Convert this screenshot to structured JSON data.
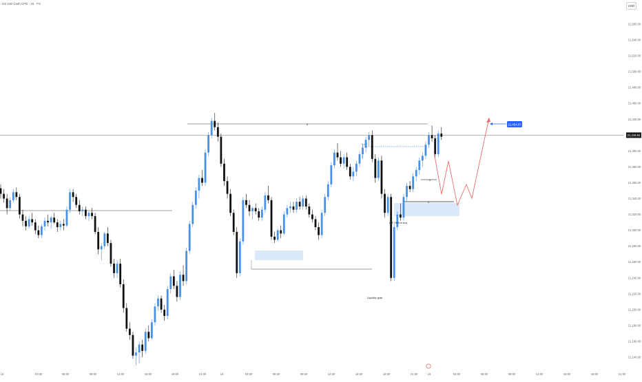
{
  "header": {
    "title": "US 100 Cash CFD · 15 · FX",
    "currency": "USD"
  },
  "colors": {
    "bull": "#4a90e2",
    "bear": "#111111",
    "zone": "#dbe9fb",
    "projection": "#ef6b6b",
    "target": "#2962ff",
    "levels": "#8a8a8a"
  },
  "chart_data": {
    "type": "candlestick",
    "y_axis": {
      "min": 21140,
      "max": 21560,
      "ticks": [
        "21,560.00",
        "21,540.00",
        "21,520.00",
        "21,500.00",
        "21,480.00",
        "21,460.00",
        "21,440.00",
        "21,420.00",
        "21,400.00",
        "21,380.00",
        "21,360.00",
        "21,340.00",
        "21,320.00",
        "21,300.00",
        "21,280.00",
        "21,260.00",
        "21,240.00",
        "21,220.00",
        "21,200.00",
        "21,180.00",
        "21,160.00",
        "21,140.00"
      ],
      "tick_values": [
        21560,
        21540,
        21520,
        21500,
        21480,
        21460,
        21440,
        21420,
        21400,
        21380,
        21360,
        21340,
        21320,
        21300,
        21280,
        21260,
        21240,
        21220,
        21200,
        21180,
        21160,
        21140
      ]
    },
    "x_axis": {
      "ticks": [
        "15",
        "03:00",
        "06:00",
        "09:00",
        "12:00",
        "15:00",
        "18:00",
        "21:00",
        "16",
        "03:00",
        "06:00",
        "09:00",
        "12:00",
        "15:00",
        "18:00",
        "21:00",
        "19",
        "03:00",
        "06:00",
        "09:00",
        "12:00",
        "15:00",
        "18:00",
        "21:00"
      ],
      "bar_positions": [
        0,
        12,
        24,
        36,
        48,
        60,
        72,
        84,
        96,
        108,
        120,
        132,
        144,
        156,
        168,
        180,
        192,
        204,
        216,
        228,
        240,
        252,
        264,
        276
      ]
    },
    "current_price": "21,419.94",
    "current_price_value": 21419.94,
    "target_price": "21,454.07",
    "target_price_value": 21454.07,
    "labels": {
      "liquidity": "Liquidity grab",
      "ltf_shift": "LTF Shift to buy",
      "level_tag": "Bull ?"
    },
    "candles": [
      [
        21353,
        21358,
        21340,
        21346
      ],
      [
        21346,
        21352,
        21335,
        21340
      ],
      [
        21340,
        21346,
        21320,
        21328
      ],
      [
        21328,
        21342,
        21325,
        21338
      ],
      [
        21338,
        21352,
        21335,
        21348
      ],
      [
        21348,
        21354,
        21338,
        21342
      ],
      [
        21342,
        21346,
        21315,
        21320
      ],
      [
        21320,
        21326,
        21305,
        21312
      ],
      [
        21312,
        21318,
        21300,
        21305
      ],
      [
        21305,
        21318,
        21302,
        21314
      ],
      [
        21314,
        21322,
        21306,
        21310
      ],
      [
        21310,
        21314,
        21295,
        21300
      ],
      [
        21300,
        21306,
        21290,
        21294
      ],
      [
        21294,
        21308,
        21290,
        21305
      ],
      [
        21305,
        21316,
        21300,
        21312
      ],
      [
        21312,
        21320,
        21305,
        21310
      ],
      [
        21310,
        21318,
        21302,
        21316
      ],
      [
        21316,
        21322,
        21308,
        21310
      ],
      [
        21310,
        21314,
        21298,
        21304
      ],
      [
        21304,
        21312,
        21300,
        21308
      ],
      [
        21308,
        21314,
        21300,
        21306
      ],
      [
        21306,
        21330,
        21304,
        21326
      ],
      [
        21326,
        21352,
        21322,
        21348
      ],
      [
        21348,
        21352,
        21336,
        21342
      ],
      [
        21342,
        21346,
        21328,
        21332
      ],
      [
        21332,
        21338,
        21320,
        21324
      ],
      [
        21324,
        21330,
        21318,
        21326
      ],
      [
        21326,
        21330,
        21314,
        21318
      ],
      [
        21318,
        21324,
        21312,
        21322
      ],
      [
        21322,
        21328,
        21314,
        21318
      ],
      [
        21318,
        21322,
        21295,
        21298
      ],
      [
        21298,
        21304,
        21270,
        21276
      ],
      [
        21276,
        21284,
        21262,
        21280
      ],
      [
        21280,
        21298,
        21276,
        21296
      ],
      [
        21296,
        21304,
        21280,
        21284
      ],
      [
        21284,
        21288,
        21254,
        21258
      ],
      [
        21258,
        21264,
        21240,
        21246
      ],
      [
        21246,
        21262,
        21240,
        21258
      ],
      [
        21258,
        21264,
        21228,
        21232
      ],
      [
        21232,
        21238,
        21196,
        21202
      ],
      [
        21202,
        21208,
        21172,
        21176
      ],
      [
        21176,
        21184,
        21162,
        21168
      ],
      [
        21168,
        21172,
        21138,
        21142
      ],
      [
        21142,
        21152,
        21130,
        21146
      ],
      [
        21146,
        21160,
        21132,
        21156
      ],
      [
        21156,
        21162,
        21140,
        21148
      ],
      [
        21148,
        21176,
        21144,
        21172
      ],
      [
        21172,
        21180,
        21160,
        21164
      ],
      [
        21164,
        21188,
        21162,
        21184
      ],
      [
        21184,
        21208,
        21180,
        21204
      ],
      [
        21204,
        21218,
        21198,
        21214
      ],
      [
        21214,
        21218,
        21196,
        21200
      ],
      [
        21200,
        21206,
        21186,
        21192
      ],
      [
        21192,
        21230,
        21188,
        21226
      ],
      [
        21226,
        21246,
        21220,
        21242
      ],
      [
        21242,
        21250,
        21226,
        21230
      ],
      [
        21230,
        21236,
        21210,
        21216
      ],
      [
        21216,
        21248,
        21212,
        21244
      ],
      [
        21244,
        21256,
        21230,
        21236
      ],
      [
        21236,
        21278,
        21232,
        21274
      ],
      [
        21274,
        21312,
        21270,
        21308
      ],
      [
        21308,
        21336,
        21304,
        21332
      ],
      [
        21332,
        21354,
        21328,
        21350
      ],
      [
        21350,
        21370,
        21340,
        21366
      ],
      [
        21366,
        21376,
        21356,
        21360
      ],
      [
        21360,
        21402,
        21356,
        21398
      ],
      [
        21398,
        21424,
        21394,
        21420
      ],
      [
        21420,
        21442,
        21416,
        21438
      ],
      [
        21438,
        21448,
        21426,
        21430
      ],
      [
        21430,
        21436,
        21412,
        21418
      ],
      [
        21418,
        21422,
        21380,
        21384
      ],
      [
        21384,
        21390,
        21356,
        21362
      ],
      [
        21362,
        21368,
        21340,
        21346
      ],
      [
        21346,
        21352,
        21318,
        21322
      ],
      [
        21322,
        21326,
        21294,
        21298
      ],
      [
        21298,
        21304,
        21240,
        21246
      ],
      [
        21246,
        21290,
        21242,
        21286
      ],
      [
        21286,
        21342,
        21282,
        21338
      ],
      [
        21338,
        21346,
        21328,
        21332
      ],
      [
        21332,
        21338,
        21318,
        21324
      ],
      [
        21324,
        21330,
        21314,
        21328
      ],
      [
        21328,
        21334,
        21320,
        21324
      ],
      [
        21324,
        21328,
        21312,
        21316
      ],
      [
        21316,
        21330,
        21312,
        21326
      ],
      [
        21326,
        21348,
        21322,
        21344
      ],
      [
        21344,
        21356,
        21334,
        21338
      ],
      [
        21338,
        21342,
        21288,
        21292
      ],
      [
        21292,
        21298,
        21284,
        21288
      ],
      [
        21288,
        21302,
        21286,
        21300
      ],
      [
        21300,
        21306,
        21290,
        21296
      ],
      [
        21296,
        21324,
        21294,
        21320
      ],
      [
        21320,
        21332,
        21316,
        21328
      ],
      [
        21328,
        21336,
        21322,
        21330
      ],
      [
        21330,
        21336,
        21322,
        21326
      ],
      [
        21326,
        21340,
        21322,
        21336
      ],
      [
        21336,
        21342,
        21326,
        21330
      ],
      [
        21330,
        21344,
        21326,
        21340
      ],
      [
        21340,
        21344,
        21326,
        21330
      ],
      [
        21330,
        21334,
        21316,
        21320
      ],
      [
        21320,
        21326,
        21310,
        21314
      ],
      [
        21314,
        21318,
        21300,
        21304
      ],
      [
        21304,
        21310,
        21288,
        21294
      ],
      [
        21294,
        21326,
        21290,
        21322
      ],
      [
        21322,
        21346,
        21318,
        21342
      ],
      [
        21342,
        21362,
        21338,
        21358
      ],
      [
        21358,
        21386,
        21354,
        21382
      ],
      [
        21382,
        21402,
        21378,
        21398
      ],
      [
        21398,
        21410,
        21388,
        21392
      ],
      [
        21392,
        21400,
        21380,
        21384
      ],
      [
        21384,
        21396,
        21378,
        21392
      ],
      [
        21392,
        21398,
        21376,
        21380
      ],
      [
        21380,
        21384,
        21364,
        21368
      ],
      [
        21368,
        21380,
        21362,
        21374
      ],
      [
        21374,
        21388,
        21368,
        21384
      ],
      [
        21384,
        21400,
        21380,
        21396
      ],
      [
        21396,
        21408,
        21390,
        21404
      ],
      [
        21404,
        21418,
        21398,
        21414
      ],
      [
        21414,
        21424,
        21406,
        21420
      ],
      [
        21420,
        21426,
        21386,
        21390
      ],
      [
        21390,
        21396,
        21360,
        21366
      ],
      [
        21366,
        21392,
        21362,
        21388
      ],
      [
        21388,
        21394,
        21340,
        21346
      ],
      [
        21346,
        21352,
        21316,
        21322
      ],
      [
        21322,
        21346,
        21318,
        21342
      ],
      [
        21342,
        21346,
        21236,
        21240
      ],
      [
        21240,
        21308,
        21236,
        21304
      ],
      [
        21304,
        21324,
        21300,
        21320
      ],
      [
        21320,
        21334,
        21312,
        21316
      ],
      [
        21316,
        21346,
        21312,
        21342
      ],
      [
        21342,
        21360,
        21336,
        21356
      ],
      [
        21356,
        21362,
        21348,
        21352
      ],
      [
        21352,
        21372,
        21348,
        21368
      ],
      [
        21368,
        21380,
        21362,
        21376
      ],
      [
        21376,
        21392,
        21370,
        21388
      ],
      [
        21388,
        21398,
        21380,
        21394
      ],
      [
        21394,
        21412,
        21390,
        21408
      ],
      [
        21408,
        21424,
        21404,
        21420
      ],
      [
        21420,
        21432,
        21412,
        21416
      ],
      [
        21416,
        21420,
        21392,
        21396
      ],
      [
        21396,
        21426,
        21392,
        21422
      ],
      [
        21422,
        21430,
        21414,
        21418
      ]
    ]
  }
}
